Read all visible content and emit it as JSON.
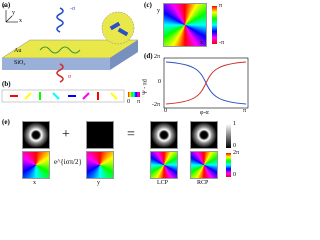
{
  "panel_a": {
    "label": "(a)",
    "beam_top": "-σ",
    "beam_bottom": "σ",
    "layer_top": "Au",
    "layer_bottom": "SiO₂",
    "axis_x": "x",
    "axis_y": "y",
    "axis_z": "z"
  },
  "panel_b": {
    "label": "(b)",
    "colorbar_min": "0",
    "colorbar_max": "π"
  },
  "panel_c": {
    "label": "(c)",
    "axis_y": "y",
    "axis_x": "x",
    "colorbar_max": "π",
    "colorbar_min": "-π"
  },
  "panel_d": {
    "label": "(d)",
    "ytick_top": "2π",
    "ytick_mid": "0",
    "ytick_bottom": "-2π",
    "xtick_left": "0",
    "xtick_right": "π",
    "xlabel": "φ-α",
    "ylabel": "Ψ - πd"
  },
  "panel_e": {
    "label": "(e)",
    "plus": "+",
    "equals": "=",
    "phase": "e^{iσπ/2}",
    "caption_1": "x",
    "caption_2": "y",
    "caption_3": "LCP",
    "caption_4": "RCP",
    "gray_max": "1",
    "gray_min": "0",
    "phase_max": "2π",
    "phase_min": "0"
  }
}
